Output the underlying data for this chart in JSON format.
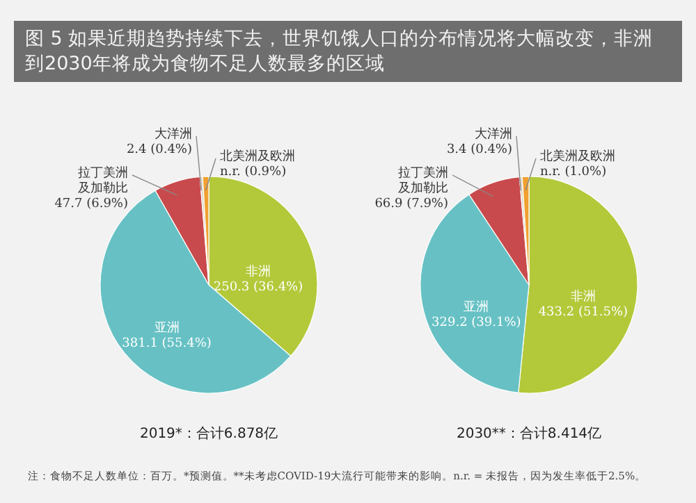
{
  "chart_data": [
    {
      "type": "pie",
      "title": "图 5 如果近期趋势持续下去，世界饥饿人口的分布情况将大幅改变，非洲到2030年将成为食物不足人数最多的区域",
      "subtitle": "2019*：合计6.878亿",
      "categories": [
        "非洲",
        "亚洲",
        "拉丁美洲及加勒比",
        "大洋洲",
        "北美洲及欧洲"
      ],
      "values": [
        36.4,
        55.4,
        6.9,
        0.4,
        0.9
      ],
      "value_labels": [
        "250.3 (36.4%)",
        "381.1 (55.4%)",
        "47.7 (6.9%)",
        "2.4 (0.4%)",
        "n.r. (0.9%)"
      ],
      "colors": [
        "#b3c93a",
        "#67c1c4",
        "#c94a4c",
        "#ddd6c4",
        "#f0a032"
      ],
      "annotations": [
        "注：食物不足人数单位：百万。*预测值。**未考虑COVID-19大流行可能带来的影响。n.r. = 未报告，因为发生率低于2.5%。"
      ]
    },
    {
      "type": "pie",
      "title": "2030**：合计8.414亿",
      "categories": [
        "非洲",
        "亚洲",
        "拉丁美洲及加勒比",
        "大洋洲",
        "北美洲及欧洲"
      ],
      "values": [
        51.5,
        39.1,
        7.9,
        0.4,
        1.0
      ],
      "value_labels": [
        "433.2 (51.5%)",
        "329.2 (39.1%)",
        "66.9 (7.9%)",
        "3.4 (0.4%)",
        "n.r. (1.0%)"
      ],
      "colors": [
        "#b3c93a",
        "#67c1c4",
        "#c94a4c",
        "#ddd6c4",
        "#f0a032"
      ]
    }
  ]
}
